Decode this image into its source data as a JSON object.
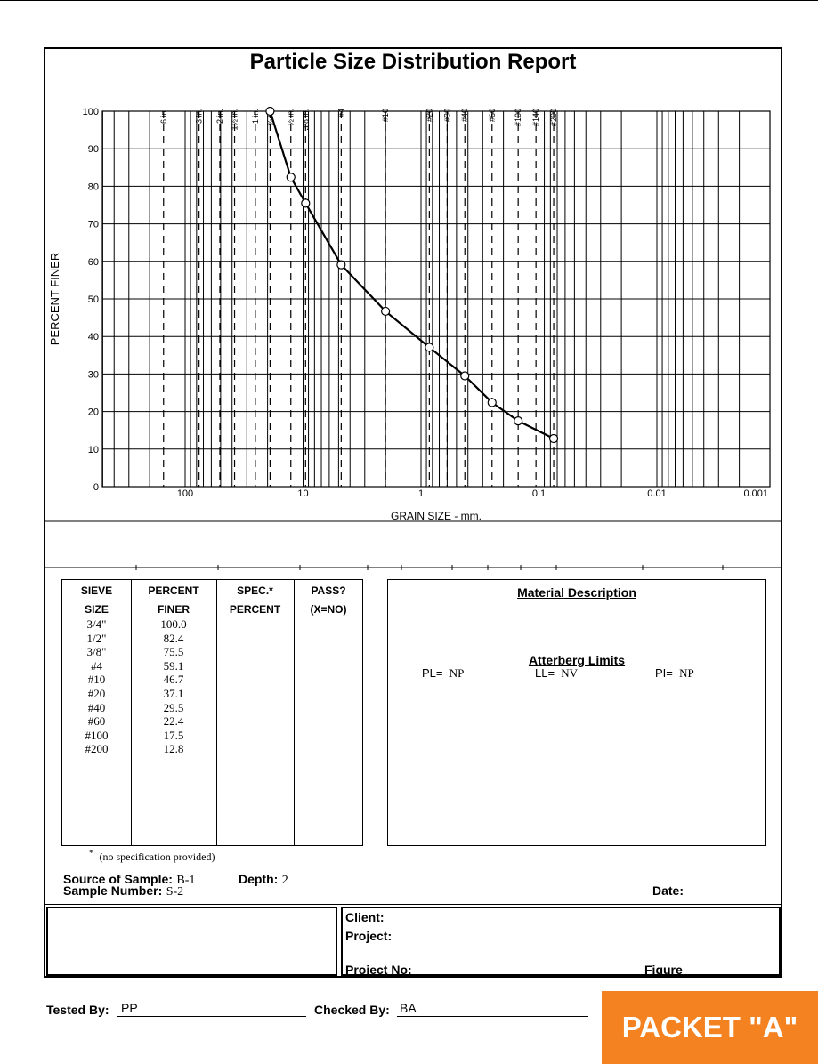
{
  "report": {
    "title": "Particle Size Distribution Report",
    "packet_label": "PACKET \"A\""
  },
  "chart_data": {
    "type": "line",
    "title": "Particle Size Distribution Report",
    "xlabel": "GRAIN SIZE - mm.",
    "ylabel": "PERCENT FINER",
    "x_scale": "log",
    "x_reversed": true,
    "xlim": [
      500,
      0.0005
    ],
    "ylim": [
      0,
      100
    ],
    "x_ticks": [
      {
        "value": 100,
        "label": "100"
      },
      {
        "value": 10,
        "label": "10"
      },
      {
        "value": 1,
        "label": "1"
      },
      {
        "value": 0.1,
        "label": "0.1"
      },
      {
        "value": 0.01,
        "label": "0.01"
      },
      {
        "value": 0.001,
        "label": "0.001"
      }
    ],
    "y_ticks": [
      0,
      10,
      20,
      30,
      40,
      50,
      60,
      70,
      80,
      90,
      100
    ],
    "grid": true,
    "sieve_markers": [
      {
        "label": "6 in.",
        "size": 152.4
      },
      {
        "label": "3 in.",
        "size": 76.2
      },
      {
        "label": "2 in.",
        "size": 50.8
      },
      {
        "label": "1½ in.",
        "size": 38.1
      },
      {
        "label": "1 in.",
        "size": 25.4
      },
      {
        "label": "¾ in.",
        "size": 19.05
      },
      {
        "label": "½ in.",
        "size": 12.7
      },
      {
        "label": "3/8 in.",
        "size": 9.525
      },
      {
        "label": "#4",
        "size": 4.75
      },
      {
        "label": "#10",
        "size": 2.0
      },
      {
        "label": "#20",
        "size": 0.85
      },
      {
        "label": "#30",
        "size": 0.6
      },
      {
        "label": "#40",
        "size": 0.425
      },
      {
        "label": "#60",
        "size": 0.25
      },
      {
        "label": "#100",
        "size": 0.15
      },
      {
        "label": "#140",
        "size": 0.106
      },
      {
        "label": "#200",
        "size": 0.075
      }
    ],
    "series": [
      {
        "x": [
          19.05,
          12.7,
          9.525,
          4.75,
          2.0,
          0.85,
          0.425,
          0.25,
          0.15,
          0.075
        ],
        "y": [
          100.0,
          82.4,
          75.5,
          59.1,
          46.7,
          37.1,
          29.5,
          22.4,
          17.5,
          12.8
        ]
      }
    ]
  },
  "sieve_table": {
    "headers": {
      "sieve": [
        "SIEVE",
        "SIZE"
      ],
      "finer": [
        "PERCENT",
        "FINER"
      ],
      "spec": [
        "SPEC.*",
        "PERCENT"
      ],
      "pass": [
        "PASS?",
        "(X=NO)"
      ]
    },
    "sizes": [
      "3/4\"",
      "1/2\"",
      "3/8\"",
      "#4",
      "#10",
      "#20",
      "#40",
      "#60",
      "#100",
      "#200"
    ],
    "finer": [
      "100.0",
      "82.4",
      "75.5",
      "59.1",
      "46.7",
      "37.1",
      "29.5",
      "22.4",
      "17.5",
      "12.8"
    ],
    "note_star": "*",
    "note": "(no specification provided)"
  },
  "material": {
    "title": "Material Description",
    "atterberg_title": "Atterberg Limits",
    "pl_label": "PL=",
    "pl_value": "NP",
    "ll_label": "LL=",
    "ll_value": "NV",
    "pi_label": "PI=",
    "pi_value": "NP"
  },
  "sample": {
    "source_label": "Source of Sample:",
    "source_value": "B-1",
    "depth_label": "Depth:",
    "depth_value": "2",
    "number_label": "Sample Number:",
    "number_value": "S-2",
    "date_label": "Date:"
  },
  "project": {
    "client_label": "Client:",
    "project_label": "Project:",
    "project_no_label": "Project No:",
    "figure_label": "Figure"
  },
  "signoff": {
    "tested_label": "Tested By:",
    "tested_value": "PP",
    "checked_label": "Checked By:",
    "checked_value": "BA"
  }
}
